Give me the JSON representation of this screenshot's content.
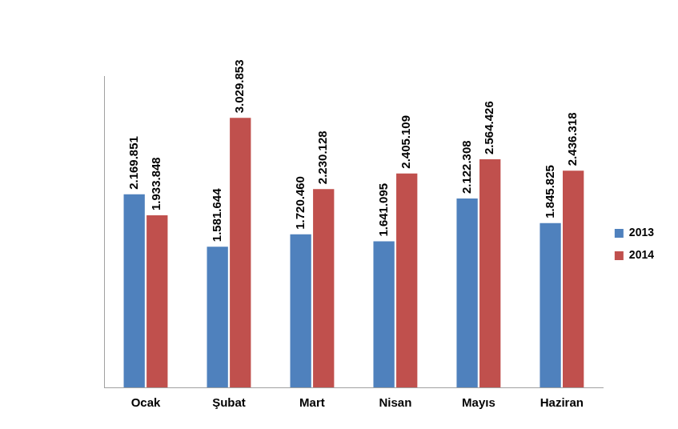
{
  "chart_data": {
    "type": "bar",
    "categories": [
      "Ocak",
      "Şubat",
      "Mart",
      "Nisan",
      "Mayıs",
      "Haziran"
    ],
    "series": [
      {
        "name": "2013",
        "color": "#4F81BD",
        "values": [
          2169851,
          1581644,
          1720460,
          1641095,
          2122308,
          1845825
        ],
        "value_labels": [
          "2.169.851",
          "1.581.644",
          "1.720.460",
          "1.641.095",
          "2.122.308",
          "1.845.825"
        ]
      },
      {
        "name": "2014",
        "color": "#C0504D",
        "values": [
          1933848,
          3029853,
          2230128,
          2405109,
          2564426,
          2436318
        ],
        "value_labels": [
          "1.933.848",
          "3.029.853",
          "2.230.128",
          "2.405.109",
          "2.564.426",
          "2.436.318"
        ]
      }
    ],
    "ylim": [
      0,
      3500000
    ],
    "grid": false,
    "legend": "right",
    "data_labels": true,
    "tick_labels": "x"
  }
}
